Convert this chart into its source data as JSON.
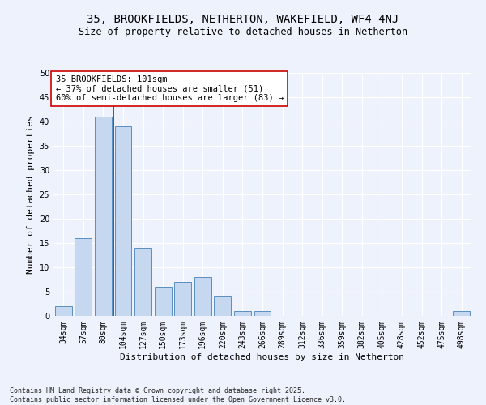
{
  "title": "35, BROOKFIELDS, NETHERTON, WAKEFIELD, WF4 4NJ",
  "subtitle": "Size of property relative to detached houses in Netherton",
  "xlabel": "Distribution of detached houses by size in Netherton",
  "ylabel": "Number of detached properties",
  "categories": [
    "34sqm",
    "57sqm",
    "80sqm",
    "104sqm",
    "127sqm",
    "150sqm",
    "173sqm",
    "196sqm",
    "220sqm",
    "243sqm",
    "266sqm",
    "289sqm",
    "312sqm",
    "336sqm",
    "359sqm",
    "382sqm",
    "405sqm",
    "428sqm",
    "452sqm",
    "475sqm",
    "498sqm"
  ],
  "values": [
    2,
    16,
    41,
    39,
    14,
    6,
    7,
    8,
    4,
    1,
    1,
    0,
    0,
    0,
    0,
    0,
    0,
    0,
    0,
    0,
    1
  ],
  "bar_color": "#c5d8f0",
  "bar_edge_color": "#5a8fc0",
  "vline_index": 2.5,
  "vline_color": "#cc0000",
  "annotation_text": "35 BROOKFIELDS: 101sqm\n← 37% of detached houses are smaller (51)\n60% of semi-detached houses are larger (83) →",
  "annotation_box_color": "#ffffff",
  "annotation_box_edge": "#cc0000",
  "ylim": [
    0,
    50
  ],
  "yticks": [
    0,
    5,
    10,
    15,
    20,
    25,
    30,
    35,
    40,
    45,
    50
  ],
  "background_color": "#eef2fc",
  "footer": "Contains HM Land Registry data © Crown copyright and database right 2025.\nContains public sector information licensed under the Open Government Licence v3.0.",
  "title_fontsize": 10,
  "subtitle_fontsize": 8.5,
  "axis_label_fontsize": 8,
  "tick_fontsize": 7,
  "annotation_fontsize": 7.5,
  "footer_fontsize": 6
}
